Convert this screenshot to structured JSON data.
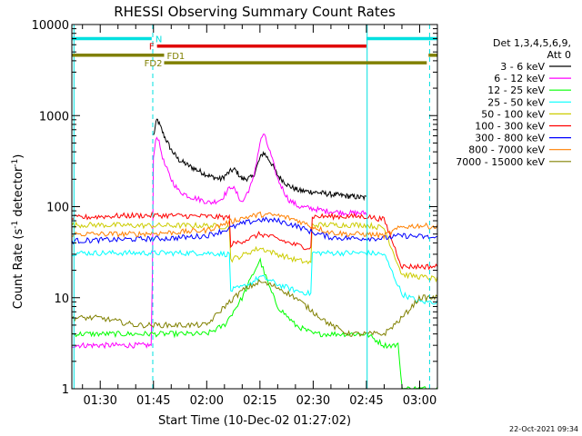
{
  "chart_data": {
    "type": "line",
    "title": "RHESSI Observing Summary Count Rates",
    "xlabel": "Start Time (10-Dec-02 01:27:02)",
    "ylabel_main": "Count Rate (s",
    "ylabel_sup1": "-1",
    "ylabel_mid": " detector",
    "ylabel_sup2": "-1",
    "ylabel_end": ")",
    "y_scale": "log",
    "ylim": [
      1,
      10000
    ],
    "xlim_minutes": [
      82,
      185
    ],
    "xticks": [
      {
        "label": "01:30",
        "minutes": 90
      },
      {
        "label": "01:45",
        "minutes": 105
      },
      {
        "label": "02:00",
        "minutes": 120
      },
      {
        "label": "02:15",
        "minutes": 135
      },
      {
        "label": "02:30",
        "minutes": 150
      },
      {
        "label": "02:45",
        "minutes": 165
      },
      {
        "label": "03:00",
        "minutes": 180
      }
    ],
    "yticks": [
      {
        "label": "1",
        "value": 1
      },
      {
        "label": "10",
        "value": 10
      },
      {
        "label": "100",
        "value": 100
      },
      {
        "label": "1000",
        "value": 1000
      },
      {
        "label": "10000",
        "value": 10000
      }
    ],
    "legend_header": [
      "Det 1,3,4,5,6,9,",
      "Att 0"
    ],
    "footer_date": "22-Oct-2021 09:34",
    "bands": [
      {
        "label": "N",
        "color": "#00e0e0",
        "value": 7000,
        "segments": [
          [
            82,
            104.5
          ],
          [
            165,
            185
          ]
        ]
      },
      {
        "label": "F",
        "color": "#e00000",
        "value": 5800,
        "segments": [
          [
            106,
            165
          ]
        ]
      },
      {
        "label": "FD1",
        "color": "#808000",
        "value": 4600,
        "segments": [
          [
            82,
            108
          ],
          [
            182.5,
            185
          ]
        ]
      },
      {
        "label": "FD2",
        "color": "#808000",
        "value": 3800,
        "segments": [
          [
            108,
            182
          ]
        ]
      }
    ],
    "vlines": [
      {
        "minutes": 82.6,
        "color": "#00e0e0",
        "style": "solid"
      },
      {
        "minutes": 104.8,
        "color": "#00e0e0",
        "style": "dashed"
      },
      {
        "minutes": 165.2,
        "color": "#00e0e0",
        "style": "solid"
      },
      {
        "minutes": 182.8,
        "color": "#00e0e0",
        "style": "dashed"
      }
    ],
    "series": [
      {
        "name": "3 - 6 keV",
        "color": "#000000",
        "x": [
          105,
          106,
          108,
          110,
          112,
          115,
          118,
          121,
          124,
          127,
          128,
          130,
          133,
          135,
          136,
          138,
          140,
          143,
          146,
          150,
          153,
          156,
          160,
          165
        ],
        "values": [
          600,
          920,
          600,
          420,
          330,
          280,
          245,
          215,
          200,
          250,
          255,
          200,
          210,
          340,
          395,
          310,
          220,
          170,
          150,
          145,
          140,
          135,
          130,
          125
        ]
      },
      {
        "name": "6 - 12 keV",
        "color": "#ff00ff",
        "x": [
          82,
          100,
          103,
          104.5,
          105,
          106,
          108,
          110,
          112,
          115,
          118,
          121,
          124,
          127,
          128,
          130,
          133,
          135,
          136,
          138,
          140,
          143,
          146,
          150,
          153,
          156,
          160,
          165
        ],
        "values": [
          3,
          3,
          3,
          3,
          400,
          620,
          300,
          200,
          150,
          130,
          120,
          110,
          120,
          170,
          150,
          110,
          190,
          500,
          640,
          380,
          200,
          120,
          100,
          95,
          90,
          88,
          85,
          85
        ]
      },
      {
        "name": "12 - 25 keV",
        "color": "#00ff00",
        "x": [
          82,
          90,
          100,
          110,
          120,
          125,
          130,
          133,
          135,
          136,
          138,
          140,
          145,
          150,
          155,
          160,
          165,
          170,
          174,
          175,
          180,
          185
        ],
        "values": [
          4,
          4,
          4,
          4,
          4,
          5,
          10,
          18,
          26,
          20,
          12,
          8,
          5,
          4,
          4,
          4,
          4,
          3,
          3,
          1,
          1,
          1
        ]
      },
      {
        "name": "25 - 50 keV",
        "color": "#00ffff",
        "x": [
          82,
          90,
          100,
          110,
          120,
          126.4,
          126.6,
          130,
          133,
          135,
          137,
          140,
          145,
          149.5,
          149.7,
          155,
          160,
          165,
          170,
          175,
          180,
          185
        ],
        "values": [
          31,
          31,
          31,
          31,
          31,
          30,
          12,
          13,
          15,
          17,
          16,
          14,
          12,
          11,
          31,
          31,
          31,
          31,
          30,
          11,
          9,
          9
        ]
      },
      {
        "name": "50 - 100 keV",
        "color": "#cccc00",
        "x": [
          82,
          90,
          100,
          110,
          120,
          126.4,
          126.6,
          130,
          133,
          135,
          137,
          140,
          145,
          149.5,
          149.7,
          155,
          160,
          165,
          170,
          175,
          180,
          185
        ],
        "values": [
          63,
          63,
          62,
          62,
          62,
          60,
          26,
          29,
          33,
          35,
          33,
          30,
          26,
          24,
          63,
          63,
          63,
          63,
          58,
          18,
          17,
          16
        ]
      },
      {
        "name": "100 - 300 keV",
        "color": "#ff0000",
        "x": [
          82,
          90,
          100,
          110,
          120,
          126.4,
          126.6,
          130,
          133,
          135,
          137,
          140,
          145,
          149.5,
          149.7,
          155,
          160,
          165,
          170,
          175,
          180,
          185
        ],
        "values": [
          75,
          78,
          80,
          80,
          78,
          76,
          38,
          42,
          46,
          50,
          48,
          44,
          38,
          35,
          78,
          78,
          78,
          78,
          72,
          22,
          22,
          22
        ]
      },
      {
        "name": "300 - 800 keV",
        "color": "#0000ff",
        "x": [
          82,
          90,
          100,
          110,
          120,
          125,
          130,
          135,
          140,
          145,
          150,
          155,
          160,
          165,
          170,
          175,
          180,
          185
        ],
        "values": [
          42,
          43,
          44,
          45,
          48,
          55,
          65,
          72,
          70,
          62,
          52,
          46,
          45,
          45,
          45,
          48,
          47,
          45
        ]
      },
      {
        "name": "800 - 7000 keV",
        "color": "#ff8000",
        "x": [
          82,
          90,
          100,
          110,
          120,
          125,
          130,
          135,
          140,
          145,
          150,
          155,
          160,
          165,
          170,
          175,
          180,
          185
        ],
        "values": [
          50,
          50,
          50,
          52,
          55,
          65,
          75,
          82,
          80,
          72,
          60,
          52,
          50,
          50,
          48,
          60,
          62,
          60
        ]
      },
      {
        "name": "7000 - 15000 keV",
        "color": "#808000",
        "x": [
          82,
          90,
          100,
          110,
          120,
          125,
          130,
          135,
          140,
          145,
          150,
          155,
          160,
          165,
          170,
          175,
          180,
          185
        ],
        "values": [
          6,
          6,
          5,
          5,
          5,
          8,
          12,
          15,
          13,
          10,
          7,
          5,
          4,
          4,
          4,
          6,
          10,
          10
        ]
      }
    ]
  }
}
